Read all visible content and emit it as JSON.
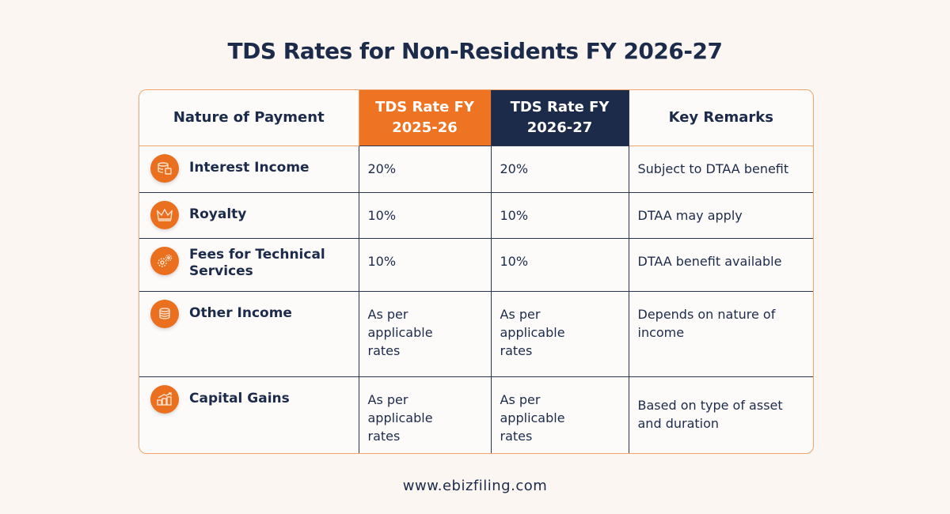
{
  "title": "TDS Rates for Non-Residents FY 2026-27",
  "headers": [
    "Nature of Payment",
    "TDS Rate FY 2025-26",
    "TDS Rate FY 2026-27",
    "Key Remarks"
  ],
  "rows": [
    {
      "icon": "coins-stack-icon",
      "name": "Interest Income",
      "fy2526": "20%",
      "fy2627": "20%",
      "remarks": "Subject to DTAA benefit"
    },
    {
      "icon": "crown-icon",
      "name": "Royalty",
      "fy2526": "10%",
      "fy2627": "10%",
      "remarks": "DTAA may apply"
    },
    {
      "icon": "gears-icon",
      "name": "Fees for Technical Services",
      "fy2526": "10%",
      "fy2627": "10%",
      "remarks": "DTAA benefit available"
    },
    {
      "icon": "coin-stack-icon",
      "name": "Other Income",
      "fy2526": "As per applicable rates",
      "fy2627": "As per applicable rates",
      "remarks": "Depends on nature of income"
    },
    {
      "icon": "growth-chart-icon",
      "name": "Capital Gains",
      "fy2526": "As per applicable rates",
      "fy2627": "As per applicable rates",
      "remarks": "Based on type of asset and duration"
    }
  ],
  "footer": "www.ebizfiling.com",
  "colors": {
    "accent": "#ee7322",
    "navy": "#1c2b4a",
    "background": "#fbf6f1"
  }
}
